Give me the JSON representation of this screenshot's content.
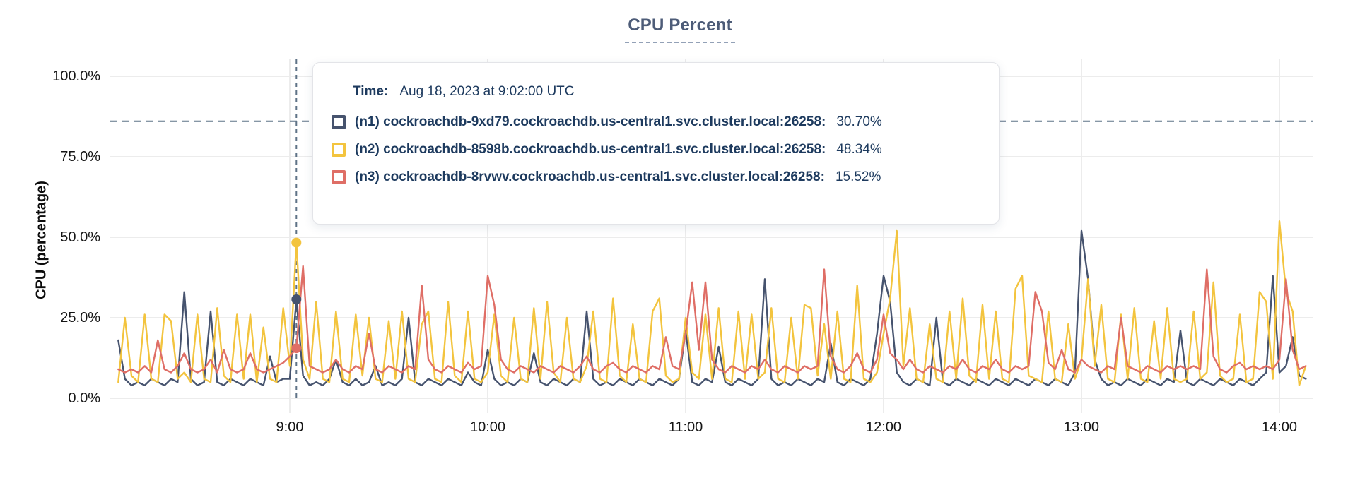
{
  "title": "CPU Percent",
  "y_axis": {
    "label": "CPU (percentage)",
    "ticks": [
      "100.0%",
      "75.0%",
      "50.0%",
      "25.0%",
      "0.0%"
    ]
  },
  "x_axis": {
    "ticks": [
      "9:00",
      "10:00",
      "11:00",
      "12:00",
      "13:00",
      "14:00"
    ]
  },
  "tooltip": {
    "time_label": "Time:",
    "time_value": "Aug 18, 2023 at 9:02:00 UTC",
    "rows": [
      {
        "name": "(n1) cockroachdb-9xd79.cockroachdb.us-central1.svc.cluster.local:26258:",
        "value": "30.70%",
        "color": "#46536e"
      },
      {
        "name": "(n2) cockroachdb-8598b.cockroachdb.us-central1.svc.cluster.local:26258:",
        "value": "48.34%",
        "color": "#f3c43e"
      },
      {
        "name": "(n3) cockroachdb-8rvwv.cockroachdb.us-central1.svc.cluster.local:26258:",
        "value": "15.52%",
        "color": "#df6e66"
      }
    ]
  },
  "colors": {
    "n1_line": "#46536e",
    "n2_line": "#f3c43e",
    "n3_line": "#df6e66",
    "gridline": "#ececec",
    "guide": "#5f7387",
    "tooltip_text": "#1d3a5e",
    "title_text": "#4d5c78"
  },
  "chart_data": {
    "type": "line",
    "title": "CPU Percent",
    "ylabel": "CPU (percentage)",
    "ylim": [
      0,
      100
    ],
    "y_tick_percents": [
      100,
      75,
      50,
      25,
      0
    ],
    "x_tick_minutes": [
      540,
      600,
      660,
      720,
      780,
      840
    ],
    "x_tick_labels": [
      "9:00",
      "10:00",
      "11:00",
      "12:00",
      "13:00",
      "14:00"
    ],
    "x_start": 488,
    "x_step": 2,
    "x_unit": "minutes-after-midnight-UTC (8:08 to 14:08, 2-min samples)",
    "grid": true,
    "threshold_percent": 86,
    "hover": {
      "time_min": 542,
      "time_text": "Aug 18, 2023 at 9:02:00 UTC",
      "points": [
        {
          "series": "n2",
          "value": 48.34
        },
        {
          "series": "n1",
          "value": 30.7
        },
        {
          "series": "n3",
          "value": 15.52
        }
      ]
    },
    "series": [
      {
        "id": "n1",
        "name": "(n1) cockroachdb-9xd79.cockroachdb.us-central1.svc.cluster.local:26258",
        "color": "#46536e",
        "values": [
          18,
          6,
          4,
          5,
          4,
          6,
          5,
          4,
          6,
          5,
          33,
          6,
          4,
          5,
          27,
          5,
          4,
          6,
          5,
          4,
          6,
          5,
          4,
          13,
          5,
          6,
          6,
          30.7,
          7,
          4,
          5,
          4,
          6,
          12,
          5,
          4,
          6,
          4,
          5,
          10,
          4,
          5,
          4,
          6,
          25,
          5,
          4,
          6,
          5,
          4,
          6,
          5,
          4,
          8,
          5,
          4,
          15,
          6,
          4,
          5,
          4,
          6,
          5,
          14,
          5,
          4,
          6,
          5,
          4,
          6,
          5,
          27,
          6,
          4,
          5,
          4,
          6,
          5,
          4,
          6,
          5,
          4,
          6,
          5,
          4,
          6,
          21,
          5,
          4,
          6,
          5,
          16,
          5,
          4,
          6,
          5,
          4,
          6,
          37,
          6,
          4,
          5,
          4,
          6,
          5,
          4,
          6,
          5,
          17,
          5,
          4,
          6,
          5,
          4,
          6,
          20,
          38,
          30,
          8,
          5,
          4,
          6,
          5,
          4,
          25,
          5,
          4,
          6,
          5,
          4,
          6,
          5,
          4,
          6,
          5,
          4,
          6,
          5,
          4,
          6,
          5,
          4,
          6,
          5,
          4,
          8,
          52,
          37,
          12,
          6,
          4,
          5,
          4,
          6,
          5,
          4,
          6,
          5,
          4,
          6,
          5,
          21,
          5,
          4,
          6,
          5,
          4,
          6,
          5,
          4,
          6,
          5,
          4,
          6,
          8,
          38,
          8,
          10,
          19,
          7,
          6
        ]
      },
      {
        "id": "n2",
        "name": "(n2) cockroachdb-8598b.cockroachdb.us-central1.svc.cluster.local:26258",
        "color": "#f3c43e",
        "values": [
          5,
          25,
          7,
          5,
          26,
          6,
          5,
          26,
          24,
          6,
          8,
          5,
          26,
          6,
          5,
          28,
          7,
          5,
          26,
          6,
          26,
          5,
          22,
          6,
          5,
          28,
          10,
          48.34,
          12,
          6,
          30,
          6,
          5,
          27,
          6,
          5,
          26,
          7,
          25,
          6,
          5,
          24,
          6,
          27,
          6,
          5,
          23,
          27,
          6,
          5,
          30,
          7,
          5,
          27,
          6,
          5,
          8,
          26,
          7,
          5,
          25,
          6,
          5,
          28,
          6,
          30,
          8,
          5,
          25,
          6,
          5,
          10,
          27,
          6,
          5,
          31,
          7,
          5,
          23,
          6,
          5,
          27,
          31,
          7,
          5,
          6,
          25,
          8,
          6,
          26,
          6,
          28,
          6,
          5,
          27,
          6,
          26,
          6,
          8,
          28,
          6,
          5,
          25,
          6,
          29,
          28,
          7,
          23,
          6,
          27,
          6,
          5,
          35,
          6,
          5,
          8,
          20,
          31,
          52,
          10,
          28,
          6,
          5,
          23,
          6,
          5,
          27,
          6,
          31,
          7,
          5,
          29,
          6,
          27,
          6,
          5,
          34,
          38,
          7,
          6,
          5,
          27,
          6,
          5,
          23,
          6,
          12,
          37,
          10,
          29,
          6,
          5,
          26,
          6,
          28,
          6,
          5,
          24,
          6,
          28,
          6,
          5,
          6,
          27,
          6,
          8,
          36,
          7,
          5,
          6,
          26,
          5,
          6,
          33,
          30,
          6,
          55,
          33,
          27,
          4,
          10
        ]
      },
      {
        "id": "n3",
        "name": "(n3) cockroachdb-8rvwv.cockroachdb.us-central1.svc.cluster.local:26258",
        "color": "#df6e66",
        "values": [
          9,
          8,
          9,
          8,
          10,
          8,
          18,
          9,
          8,
          10,
          14,
          9,
          8,
          9,
          12,
          8,
          15,
          9,
          8,
          9,
          14,
          9,
          8,
          9,
          10,
          11,
          13,
          15.52,
          41,
          10,
          9,
          8,
          9,
          12,
          9,
          8,
          10,
          9,
          20,
          9,
          8,
          10,
          9,
          8,
          10,
          9,
          35,
          12,
          9,
          8,
          10,
          9,
          8,
          11,
          9,
          10,
          38,
          29,
          12,
          9,
          8,
          10,
          9,
          8,
          10,
          9,
          8,
          10,
          9,
          8,
          10,
          13,
          9,
          8,
          10,
          11,
          9,
          8,
          10,
          9,
          8,
          10,
          9,
          19,
          10,
          9,
          20,
          36,
          15,
          36,
          12,
          9,
          8,
          10,
          9,
          8,
          10,
          9,
          12,
          9,
          8,
          10,
          9,
          8,
          10,
          9,
          10,
          40,
          13,
          9,
          8,
          10,
          14,
          9,
          8,
          12,
          26,
          14,
          12,
          9,
          12,
          9,
          8,
          10,
          9,
          8,
          10,
          9,
          12,
          9,
          8,
          10,
          9,
          12,
          9,
          8,
          10,
          9,
          10,
          33,
          27,
          11,
          9,
          15,
          9,
          8,
          12,
          10,
          9,
          8,
          10,
          9,
          25,
          10,
          9,
          8,
          10,
          9,
          8,
          10,
          9,
          10,
          9,
          10,
          9,
          40,
          13,
          9,
          8,
          10,
          11,
          9,
          10,
          9,
          10,
          9,
          12,
          37,
          15,
          9,
          10
        ]
      }
    ]
  }
}
